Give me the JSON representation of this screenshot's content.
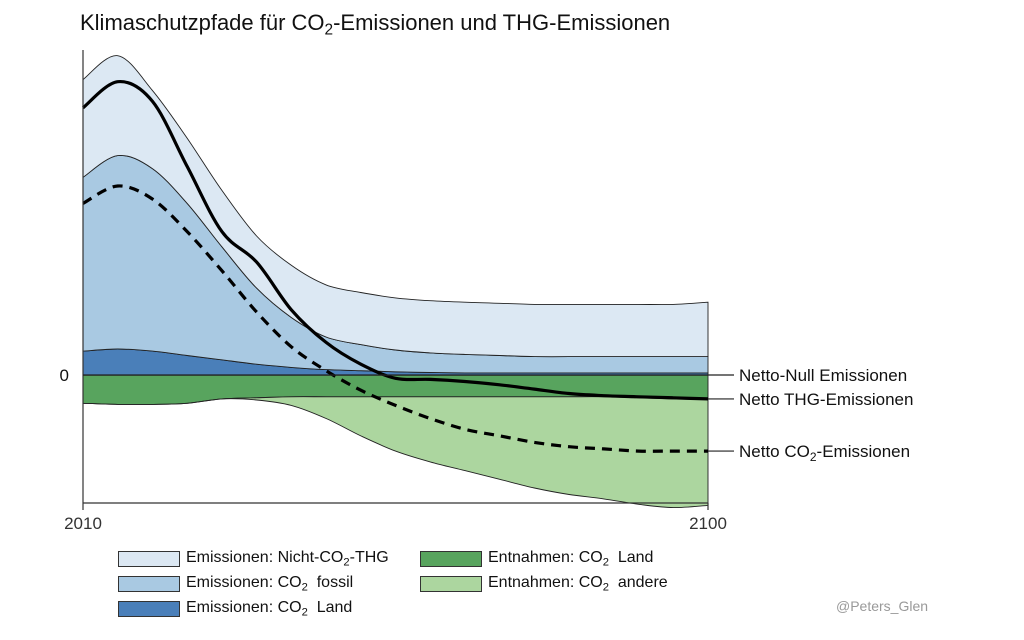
{
  "chart_data": {
    "type": "area",
    "title_parts": [
      "Klimaschutzpfade für CO",
      "2",
      "-Emissionen und THG-Emissionen"
    ],
    "x_ticks": [
      "2010",
      "2100"
    ],
    "xlim": [
      2010,
      2100
    ],
    "y_ticks": [
      "0"
    ],
    "x": [
      2010,
      2015,
      2020,
      2025,
      2030,
      2035,
      2040,
      2045,
      2050,
      2055,
      2060,
      2065,
      2070,
      2075,
      2080,
      2085,
      2090,
      2095,
      2100
    ],
    "series": [
      {
        "name": "Emissionen: CO2  Land",
        "color": "#4a7fb9",
        "kind": "positive",
        "values": [
          1.1,
          1.2,
          1.1,
          0.9,
          0.7,
          0.5,
          0.35,
          0.25,
          0.2,
          0.15,
          0.12,
          0.1,
          0.1,
          0.1,
          0.1,
          0.1,
          0.1,
          0.1,
          0.1
        ]
      },
      {
        "name": "Emissionen: CO2  fossil",
        "color": "#a9c9e2",
        "kind": "positive",
        "values": [
          8.0,
          8.9,
          8.4,
          7.0,
          5.2,
          3.5,
          2.3,
          1.5,
          1.2,
          1.0,
          0.9,
          0.85,
          0.8,
          0.75,
          0.75,
          0.75,
          0.75,
          0.75,
          0.75
        ]
      },
      {
        "name": "Emissionen: Nicht-CO2-THG",
        "color": "#dce8f3",
        "kind": "positive",
        "values": [
          4.5,
          4.6,
          3.6,
          3.0,
          2.6,
          2.4,
          2.4,
          2.4,
          2.4,
          2.4,
          2.4,
          2.4,
          2.4,
          2.4,
          2.4,
          2.4,
          2.4,
          2.4,
          2.5
        ]
      },
      {
        "name": "Entnahmen: CO2  Land",
        "color": "#58a45e",
        "kind": "negative",
        "values": [
          -1.3,
          -1.35,
          -1.35,
          -1.3,
          -1.1,
          -1.05,
          -1.0,
          -1.0,
          -1.0,
          -1.0,
          -1.0,
          -1.0,
          -1.0,
          -1.0,
          -1.0,
          -1.0,
          -1.05,
          -1.1,
          -1.1
        ]
      },
      {
        "name": "Entnahmen: CO2  andere",
        "color": "#acd69f",
        "kind": "negative",
        "values": [
          0,
          0,
          0,
          0,
          0,
          -0.1,
          -0.4,
          -1.0,
          -1.8,
          -2.5,
          -3.0,
          -3.4,
          -3.8,
          -4.2,
          -4.5,
          -4.7,
          -4.9,
          -5.0,
          -4.9
        ]
      }
    ],
    "lines": [
      {
        "name": "Netto THG-Emissionen",
        "style": "solid",
        "values": [
          12.3,
          13.5,
          12.6,
          9.6,
          6.6,
          5.2,
          3.0,
          1.5,
          0.5,
          -0.15,
          -0.2,
          -0.3,
          -0.45,
          -0.65,
          -0.85,
          -0.95,
          -1.0,
          -1.05,
          -1.1
        ]
      },
      {
        "name": "Netto CO2-Emissionen",
        "style": "dashed",
        "values": [
          7.9,
          8.7,
          8.1,
          6.6,
          4.8,
          2.9,
          1.3,
          0.2,
          -0.7,
          -1.4,
          -2.0,
          -2.5,
          -2.8,
          -3.1,
          -3.3,
          -3.4,
          -3.5,
          -3.5,
          -3.5
        ]
      }
    ],
    "right_labels": [
      {
        "parts": [
          "Netto-Null Emissionen"
        ],
        "value": 0
      },
      {
        "parts": [
          "Netto THG-Emissionen"
        ],
        "value": -1.1
      },
      {
        "parts": [
          "Netto CO",
          "2",
          "-Emissionen"
        ],
        "value": -3.5
      }
    ],
    "legend": [
      {
        "parts": [
          "Emissionen: Nicht-CO",
          "2",
          "-THG"
        ],
        "color": "#dce8f3"
      },
      {
        "parts": [
          "Emissionen: CO",
          "2",
          "  fossil"
        ],
        "color": "#a9c9e2"
      },
      {
        "parts": [
          "Emissionen: CO",
          "2",
          "  Land"
        ],
        "color": "#4a7fb9"
      },
      {
        "parts": [
          "Entnahmen: CO",
          "2",
          "  Land"
        ],
        "color": "#58a45e"
      },
      {
        "parts": [
          "Entnahmen: CO",
          "2",
          "  andere"
        ],
        "color": "#acd69f"
      }
    ],
    "legend_placement": "bottom",
    "ylim": [
      -5.2,
      14.5
    ],
    "grid": false
  },
  "credit": "@Peters_Glen"
}
